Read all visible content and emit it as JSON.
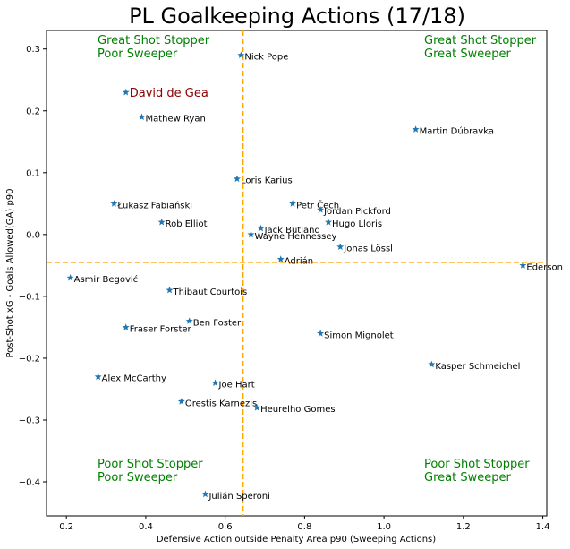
{
  "chart_data": {
    "type": "scatter",
    "title": "PL Goalkeeping Actions (17/18)",
    "xlabel": "Defensive Action outside Penalty Area p90 (Sweeping Actions)",
    "ylabel": "Post-Shot xG - Goals Allowed(GA) p90",
    "xlim": [
      0.15,
      1.41
    ],
    "ylim": [
      -0.455,
      0.33
    ],
    "x_ticks": [
      0.2,
      0.4,
      0.6,
      0.8,
      1.0,
      1.2,
      1.4
    ],
    "x_tick_labels": [
      "0.2",
      "0.4",
      "0.6",
      "0.8",
      "1.0",
      "1.2",
      "1.4"
    ],
    "y_ticks": [
      0.3,
      0.2,
      0.1,
      0.0,
      -0.1,
      -0.2,
      -0.3,
      -0.4
    ],
    "y_tick_labels": [
      "0.3",
      "0.2",
      "0.1",
      "0.0",
      "−0.1",
      "−0.2",
      "−0.3",
      "−0.4"
    ],
    "grid": false,
    "marker": "star",
    "marker_color": "#1f77b4",
    "mean_x": 0.645,
    "mean_y": -0.045,
    "mean_line_color": "#ffa500",
    "highlight_color": "#8b0000",
    "quadrant_color": "#008000",
    "quadrants": [
      {
        "line1": "Great Shot Stopper",
        "line2": "Poor Sweeper",
        "position": "top-left"
      },
      {
        "line1": "Great Shot Stopper",
        "line2": "Great Sweeper",
        "position": "top-right"
      },
      {
        "line1": "Poor Shot Stopper",
        "line2": "Poor Sweeper",
        "position": "bottom-left"
      },
      {
        "line1": "Poor Shot Stopper",
        "line2": "Great Sweeper",
        "position": "bottom-right"
      }
    ],
    "points": [
      {
        "name": "Nick Pope",
        "x": 0.64,
        "y": 0.29
      },
      {
        "name": "David de Gea",
        "x": 0.35,
        "y": 0.23,
        "highlight": true
      },
      {
        "name": "Mathew Ryan",
        "x": 0.39,
        "y": 0.19
      },
      {
        "name": "Martin Dúbravka",
        "x": 1.08,
        "y": 0.17
      },
      {
        "name": "Loris Karius",
        "x": 0.63,
        "y": 0.09
      },
      {
        "name": "Łukasz Fabiański",
        "x": 0.32,
        "y": 0.05
      },
      {
        "name": "Petr Čech",
        "x": 0.77,
        "y": 0.05
      },
      {
        "name": "Jordan Pickford",
        "x": 0.84,
        "y": 0.04
      },
      {
        "name": "Rob Elliot",
        "x": 0.44,
        "y": 0.02
      },
      {
        "name": "Hugo Lloris",
        "x": 0.86,
        "y": 0.02
      },
      {
        "name": "Jack Butland",
        "x": 0.69,
        "y": 0.01
      },
      {
        "name": "Wayne Hennessey",
        "x": 0.665,
        "y": 0.0
      },
      {
        "name": "Jonas Lössl",
        "x": 0.89,
        "y": -0.02
      },
      {
        "name": "Adrián",
        "x": 0.74,
        "y": -0.04
      },
      {
        "name": "Ederson",
        "x": 1.35,
        "y": -0.05
      },
      {
        "name": "Asmir Begović",
        "x": 0.21,
        "y": -0.07
      },
      {
        "name": "Thibaut Courtois",
        "x": 0.46,
        "y": -0.09
      },
      {
        "name": "Ben Foster",
        "x": 0.51,
        "y": -0.14
      },
      {
        "name": "Fraser Forster",
        "x": 0.35,
        "y": -0.15
      },
      {
        "name": "Simon Mignolet",
        "x": 0.84,
        "y": -0.16
      },
      {
        "name": "Kasper Schmeichel",
        "x": 1.12,
        "y": -0.21
      },
      {
        "name": "Alex McCarthy",
        "x": 0.28,
        "y": -0.23
      },
      {
        "name": "Joe Hart",
        "x": 0.575,
        "y": -0.24
      },
      {
        "name": "Orestis Karnezis",
        "x": 0.49,
        "y": -0.27
      },
      {
        "name": "Heurelho Gomes",
        "x": 0.68,
        "y": -0.28
      },
      {
        "name": "Julián Speroni",
        "x": 0.55,
        "y": -0.42
      }
    ]
  }
}
